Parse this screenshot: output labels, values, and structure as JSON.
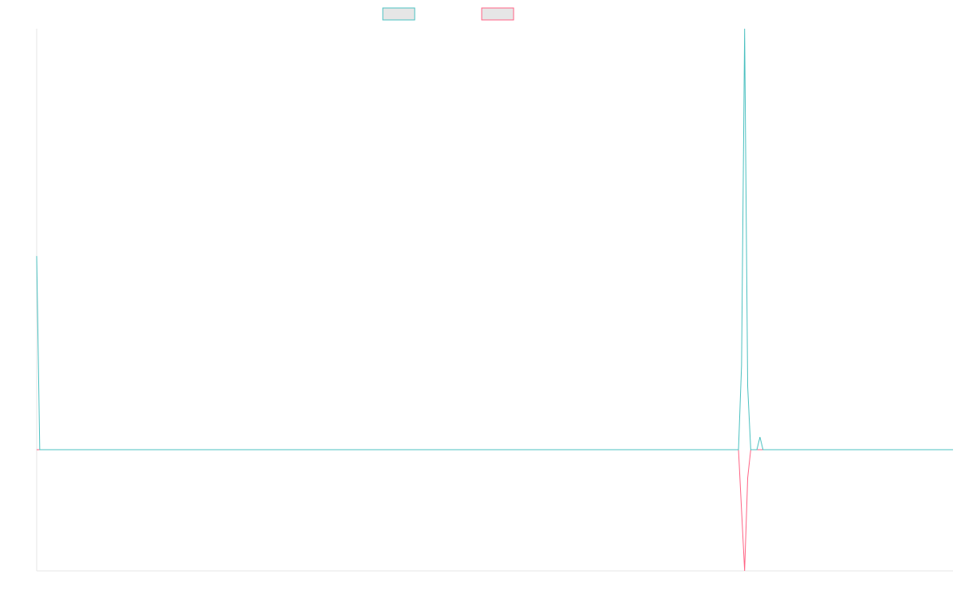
{
  "chart_data": {
    "type": "line",
    "title": "",
    "xlabel": "",
    "ylabel": "",
    "grid": false,
    "legend_position": "top-center",
    "x_count": 300,
    "ylim": [
      -300,
      1000
    ],
    "series": [
      {
        "name": "",
        "color": "#4bc0c0",
        "fill": "#e6e6e6",
        "points": [
          [
            0,
            460
          ],
          [
            1,
            0
          ],
          [
            229,
            0
          ],
          [
            230,
            200
          ],
          [
            231,
            1000
          ],
          [
            232,
            150
          ],
          [
            233,
            0
          ],
          [
            235,
            0
          ],
          [
            236,
            30
          ],
          [
            237,
            0
          ],
          [
            299,
            0
          ]
        ]
      },
      {
        "name": "",
        "color": "#ff6384",
        "fill": "#e6e6e6",
        "points": [
          [
            0,
            0
          ],
          [
            229,
            0
          ],
          [
            230,
            -150
          ],
          [
            231,
            -300
          ],
          [
            232,
            -70
          ],
          [
            233,
            0
          ],
          [
            299,
            0
          ]
        ]
      }
    ]
  }
}
